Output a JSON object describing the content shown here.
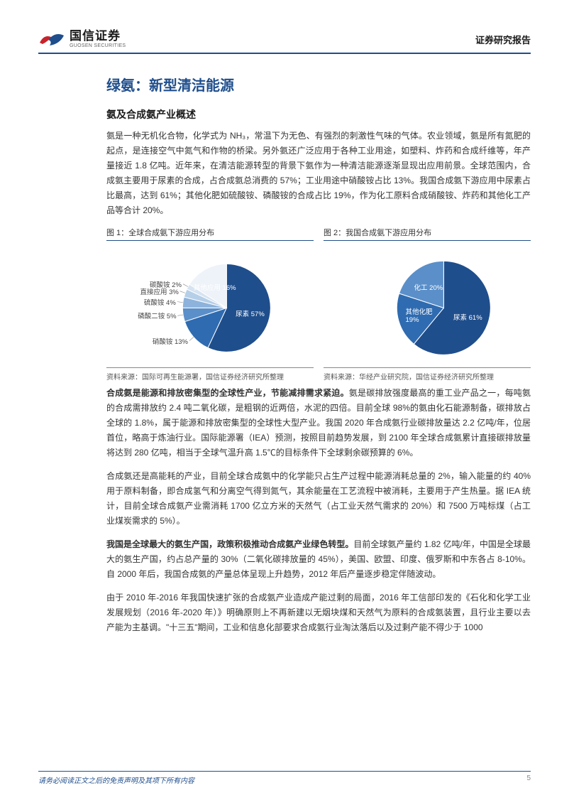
{
  "header": {
    "logo_cn": "国信证券",
    "logo_en": "GUOSEN SECURITIES",
    "report_type": "证券研究报告"
  },
  "title": "绿氨：新型清洁能源",
  "subtitle": "氨及合成氨产业概述",
  "paragraphs": {
    "p1": "氨是一种无机化合物，化学式为 NH₃，常温下为无色、有强烈的刺激性气味的气体。农业领域，氨是所有氮肥的起点，是连接空气中氮气和作物的桥梁。另外氨还广泛应用于各种工业用途，如塑料、炸药和合成纤维等，年产量接近 1.8 亿吨。近年来，在清洁能源转型的背景下氨作为一种清洁能源逐渐显现出应用前景。全球范围内，合成氨主要用于尿素的合成，占合成氨总消费的 57%；工业用途中硝酸铵占比 13%。我国合成氨下游应用中尿素占比最高，达到 61%；其他化肥如硫酸铵、磷酸铵的合成占比 19%，作为化工原料合成硝酸铵、炸药和其他化工产品等合计 20%。",
    "p2_bold": "合成氨是能源和排放密集型的全球性产业，节能减排需求紧迫。",
    "p2_rest": "氨是碳排放强度最高的重工业产品之一，每吨氨的合成需排放约 2.4 吨二氧化碳，是粗钢的近两倍，水泥的四倍。目前全球 98%的氨由化石能源制备，碳排放占全球的 1.8%，属于能源和排放密集型的全球性大型产业。我国 2020 年合成氨行业碳排放量达 2.2 亿吨/年，位居首位，略高于炼油行业。国际能源署（IEA）预测，按照目前趋势发展，到 2100 年全球合成氨累计直接碳排放量将达到 280 亿吨，相当于全球气温升高 1.5℃的目标条件下全球剩余碳预算的 6%。",
    "p3": "合成氨还是高能耗的产业，目前全球合成氨中的化学能只占生产过程中能源消耗总量的 2%，输入能量的约 40%用于原料制备，即合成氢气和分离空气得到氮气，其余能量在工艺流程中被消耗，主要用于产生热量。据 IEA 统计，目前全球合成氨产业需消耗 1700 亿立方米的天然气（占工业天然气需求的 20%）和 7500 万吨标煤（占工业煤炭需求的 5%）。",
    "p4_bold": "我国是全球最大的氨生产国，政策积极推动合成氨产业绿色转型。",
    "p4_rest": "目前全球氨产量约 1.82 亿吨/年，中国是全球最大的氨生产国，约占总产量的 30%（二氧化碳排放量的 45%），美国、欧盟、印度、俄罗斯和中东各占 8-10%。自 2000 年后，我国合成氨的产量总体呈现上升趋势，2012 年后产量逐步稳定伴随波动。",
    "p5": "由于 2010 年-2016 年我国快速扩张的合成氨产业造成产能过剩的局面，2016 年工信部印发的《石化和化学工业发展规划（2016 年-2020 年）》明确原则上不再新建以无烟块煤和天然气为原料的合成氨装置，且行业主要以去产能为主基调。\"十三五\"期间，工业和信息化部要求合成氨行业淘汰落后以及过剩产能不得少于 1000"
  },
  "chart1": {
    "caption": "图 1：全球合成氨下游应用分布",
    "type": "pie",
    "slices": [
      {
        "label": "尿素",
        "value": 57,
        "color": "#1f4e8c",
        "display": "尿素  57%"
      },
      {
        "label": "硝酸铵",
        "value": 13,
        "color": "#2f6bb0",
        "display": "硝酸铵 13%"
      },
      {
        "label": "磷酸二铵",
        "value": 5,
        "color": "#5a8fc9",
        "display": "磷酸二铵 5%"
      },
      {
        "label": "硫酸铵",
        "value": 4,
        "color": "#8db3dc",
        "display": "硫酸铵 4%"
      },
      {
        "label": "直接应用",
        "value": 3,
        "color": "#b6cfe8",
        "display": "直接应用 3%"
      },
      {
        "label": "碳酸铵",
        "value": 2,
        "color": "#d6e3f1",
        "display": "碳酸铵 2%"
      },
      {
        "label": "其他应用",
        "value": 16,
        "color": "#eef3f9",
        "display": "其他应用 16%"
      }
    ],
    "source": "资料来源：国际可再生能源署，国信证券经济研究所整理"
  },
  "chart2": {
    "caption": "图 2：我国合成氨下游应用分布",
    "type": "pie",
    "slices": [
      {
        "label": "尿素",
        "value": 61,
        "color": "#1f4e8c",
        "display": "尿素  61%"
      },
      {
        "label": "其他化肥",
        "value": 19,
        "color": "#2f6bb0",
        "display": "其他化肥\n19%"
      },
      {
        "label": "化工",
        "value": 20,
        "color": "#5a8fc9",
        "display": "化工  20%"
      }
    ],
    "source": "资料来源：华经产业研究院，国信证券经济研究所整理"
  },
  "footer": {
    "disclaimer": "请务必阅读正文之后的免责声明及其项下所有内容",
    "page": "5"
  },
  "colors": {
    "brand_blue": "#1f4e8c",
    "logo_red": "#c8232c",
    "logo_blue": "#1f4e8c",
    "text": "#333333",
    "background": "#ffffff"
  }
}
